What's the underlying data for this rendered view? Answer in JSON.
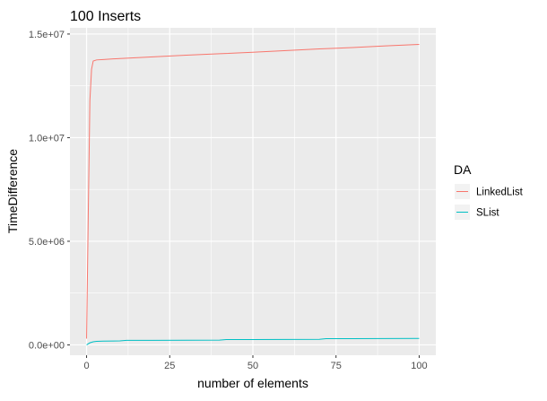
{
  "chart_data": {
    "type": "line",
    "title": "100 Inserts",
    "xlabel": "number of elements",
    "ylabel": "TimeDifference",
    "xlim": [
      -5,
      105
    ],
    "ylim": [
      -500000,
      15300000
    ],
    "x_ticks": [
      0,
      25,
      50,
      75,
      100
    ],
    "x_tick_labels": [
      "0",
      "25",
      "50",
      "75",
      "100"
    ],
    "y_ticks": [
      0,
      5000000,
      10000000,
      15000000
    ],
    "y_tick_labels": [
      "0.0e+00",
      "5.0e+06",
      "1.0e+07",
      "1.5e+07"
    ],
    "grid": true,
    "background": "#ebebeb",
    "grid_color": "#ffffff",
    "legend": {
      "title": "DA",
      "position": "right"
    },
    "series": [
      {
        "name": "LinkedList",
        "color": "#f8766d",
        "x": [
          0,
          0.5,
          1,
          1.5,
          2,
          3,
          5,
          10,
          20,
          30,
          40,
          50,
          60,
          70,
          80,
          90,
          100
        ],
        "y": [
          300000,
          6200000,
          11800000,
          13300000,
          13700000,
          13750000,
          13770000,
          13820000,
          13900000,
          13980000,
          14050000,
          14120000,
          14200000,
          14280000,
          14350000,
          14430000,
          14500000
        ]
      },
      {
        "name": "SList",
        "color": "#00bfc4",
        "x": [
          0,
          1,
          2,
          3,
          5,
          10,
          12,
          20,
          30,
          40,
          42,
          50,
          60,
          70,
          72,
          80,
          90,
          100
        ],
        "y": [
          0,
          100000,
          150000,
          170000,
          180000,
          190000,
          220000,
          220000,
          225000,
          230000,
          260000,
          260000,
          265000,
          270000,
          300000,
          300000,
          305000,
          310000
        ]
      }
    ]
  }
}
